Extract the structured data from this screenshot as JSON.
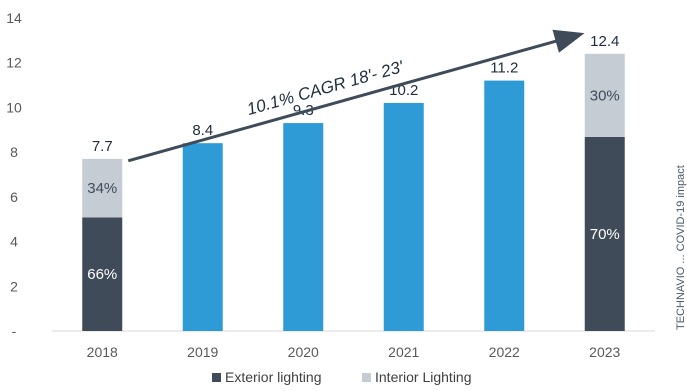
{
  "chart_data": {
    "type": "bar",
    "categories": [
      "2018",
      "2019",
      "2020",
      "2021",
      "2022",
      "2023"
    ],
    "totals": [
      7.7,
      8.4,
      9.3,
      10.2,
      11.2,
      12.4
    ],
    "total_labels": [
      "7.7",
      "8.4",
      "9.3",
      "10.2",
      "11.2",
      "12.4"
    ],
    "y_ticks": [
      0,
      2,
      4,
      6,
      8,
      10,
      12,
      14
    ],
    "y_tick_labels": [
      "-",
      "2",
      "4",
      "6",
      "8",
      "10",
      "12",
      "14"
    ],
    "ylim": [
      0,
      14
    ],
    "title": "",
    "xlabel": "",
    "ylabel": "",
    "grid": false,
    "legend_position": "bottom",
    "series": [
      {
        "name": "Exterior lighting",
        "color": "#404b5a",
        "share": {
          "2018": 0.66,
          "2023": 0.7
        },
        "share_labels": {
          "2018": "66%",
          "2023": "70%"
        }
      },
      {
        "name": "Interior Lighting",
        "color": "#c5ccd4",
        "share": {
          "2018": 0.34,
          "2023": 0.3
        },
        "share_labels": {
          "2018": "34%",
          "2023": "30%"
        }
      }
    ],
    "total_only_color": "#2e9bd6",
    "annotation": {
      "text": "10.1% CAGR 18'- 23'",
      "type": "arrow",
      "from_category": "2018",
      "to_category": "2023"
    },
    "side_text": "TECHNAVIO ... COVID-19 impact"
  }
}
